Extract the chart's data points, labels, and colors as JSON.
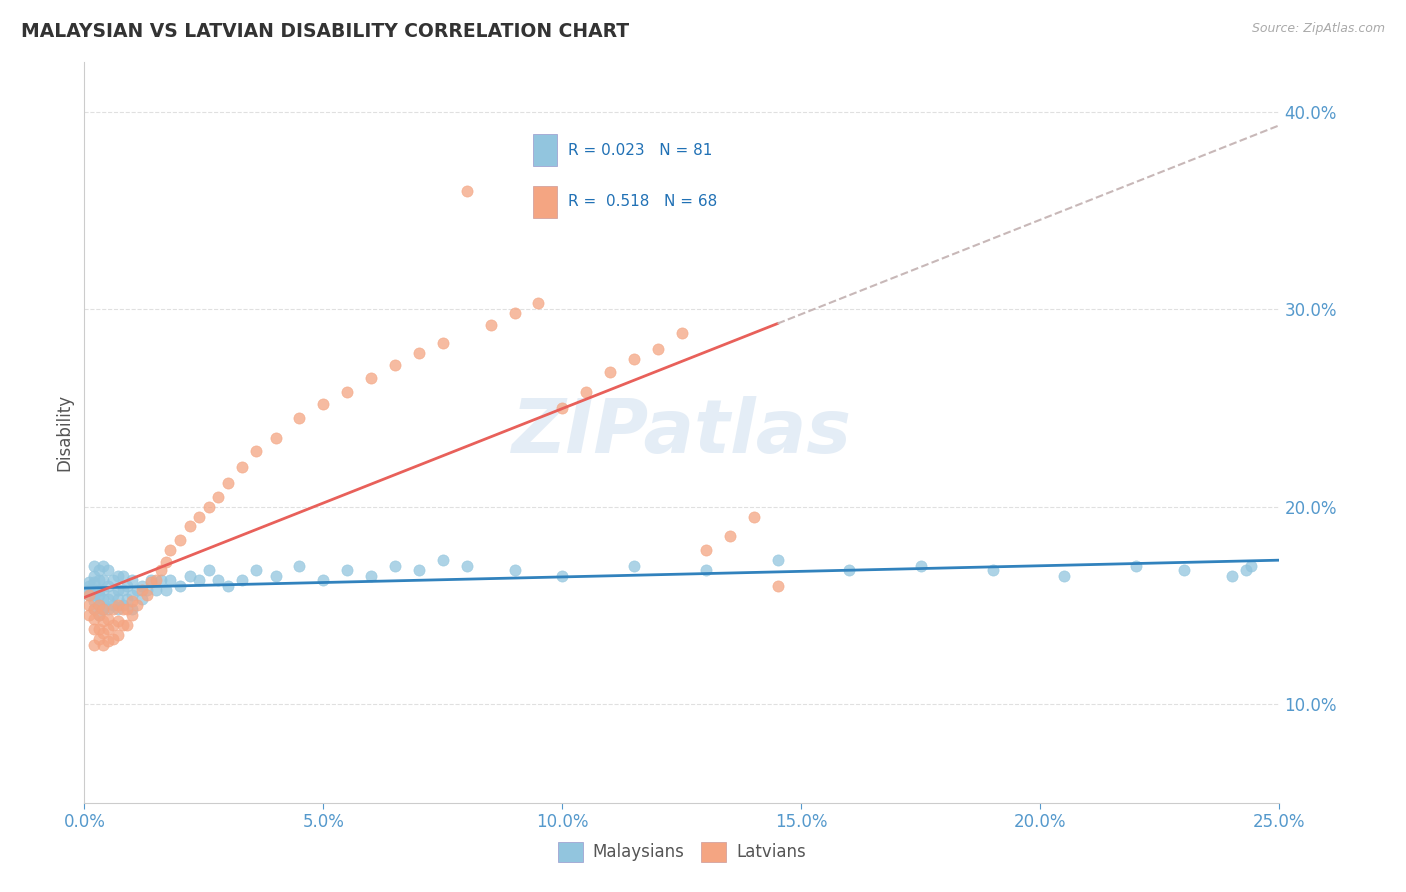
{
  "title": "MALAYSIAN VS LATVIAN DISABILITY CORRELATION CHART",
  "source": "Source: ZipAtlas.com",
  "ylabel": "Disability",
  "xlim": [
    0.0,
    0.25
  ],
  "ylim": [
    0.05,
    0.425
  ],
  "yticks": [
    0.1,
    0.2,
    0.3,
    0.4
  ],
  "xticks": [
    0.0,
    0.05,
    0.1,
    0.15,
    0.2,
    0.25
  ],
  "blue_color": "#92c5de",
  "pink_color": "#f4a582",
  "trendline_blue_color": "#3182bd",
  "trendline_pink_color": "#e8605a",
  "trendline_gray_color": "#c8b8b8",
  "watermark": "ZIPatlas",
  "r_malaysian": 0.023,
  "n_malaysian": 81,
  "r_latvian": 0.518,
  "n_latvian": 68,
  "legend_blue_text": "R = 0.023   N = 81",
  "legend_pink_text": "R =  0.518   N = 68",
  "legend_label_blue": "Malaysians",
  "legend_label_pink": "Latvians",
  "malaysian_x": [
    0.001,
    0.001,
    0.001,
    0.001,
    0.002,
    0.002,
    0.002,
    0.002,
    0.002,
    0.002,
    0.002,
    0.003,
    0.003,
    0.003,
    0.003,
    0.003,
    0.003,
    0.004,
    0.004,
    0.004,
    0.004,
    0.004,
    0.005,
    0.005,
    0.005,
    0.005,
    0.006,
    0.006,
    0.006,
    0.007,
    0.007,
    0.007,
    0.007,
    0.008,
    0.008,
    0.008,
    0.009,
    0.009,
    0.01,
    0.01,
    0.01,
    0.011,
    0.012,
    0.012,
    0.013,
    0.014,
    0.015,
    0.016,
    0.017,
    0.018,
    0.02,
    0.022,
    0.024,
    0.026,
    0.028,
    0.03,
    0.033,
    0.036,
    0.04,
    0.045,
    0.05,
    0.055,
    0.06,
    0.065,
    0.07,
    0.075,
    0.08,
    0.09,
    0.1,
    0.115,
    0.13,
    0.145,
    0.16,
    0.175,
    0.19,
    0.205,
    0.22,
    0.23,
    0.24,
    0.243,
    0.244
  ],
  "malaysian_y": [
    0.155,
    0.158,
    0.16,
    0.162,
    0.148,
    0.152,
    0.155,
    0.158,
    0.162,
    0.165,
    0.17,
    0.145,
    0.15,
    0.155,
    0.158,
    0.163,
    0.168,
    0.148,
    0.153,
    0.158,
    0.163,
    0.17,
    0.148,
    0.153,
    0.16,
    0.168,
    0.15,
    0.155,
    0.163,
    0.148,
    0.153,
    0.158,
    0.165,
    0.15,
    0.158,
    0.165,
    0.153,
    0.16,
    0.148,
    0.155,
    0.163,
    0.158,
    0.153,
    0.16,
    0.158,
    0.163,
    0.158,
    0.163,
    0.158,
    0.163,
    0.16,
    0.165,
    0.163,
    0.168,
    0.163,
    0.16,
    0.163,
    0.168,
    0.165,
    0.17,
    0.163,
    0.168,
    0.165,
    0.17,
    0.168,
    0.173,
    0.17,
    0.168,
    0.165,
    0.17,
    0.168,
    0.173,
    0.168,
    0.17,
    0.168,
    0.165,
    0.17,
    0.168,
    0.165,
    0.168,
    0.17
  ],
  "latvian_x": [
    0.001,
    0.001,
    0.001,
    0.002,
    0.002,
    0.002,
    0.002,
    0.003,
    0.003,
    0.003,
    0.003,
    0.004,
    0.004,
    0.004,
    0.004,
    0.005,
    0.005,
    0.005,
    0.006,
    0.006,
    0.006,
    0.007,
    0.007,
    0.007,
    0.008,
    0.008,
    0.009,
    0.009,
    0.01,
    0.01,
    0.011,
    0.012,
    0.013,
    0.014,
    0.015,
    0.016,
    0.017,
    0.018,
    0.02,
    0.022,
    0.024,
    0.026,
    0.028,
    0.03,
    0.033,
    0.036,
    0.04,
    0.045,
    0.05,
    0.055,
    0.06,
    0.065,
    0.07,
    0.075,
    0.08,
    0.085,
    0.09,
    0.095,
    0.1,
    0.105,
    0.11,
    0.115,
    0.12,
    0.125,
    0.13,
    0.135,
    0.14,
    0.145
  ],
  "latvian_y": [
    0.145,
    0.15,
    0.155,
    0.13,
    0.138,
    0.143,
    0.148,
    0.133,
    0.138,
    0.145,
    0.15,
    0.13,
    0.136,
    0.142,
    0.148,
    0.132,
    0.138,
    0.143,
    0.133,
    0.14,
    0.148,
    0.135,
    0.142,
    0.15,
    0.14,
    0.148,
    0.14,
    0.148,
    0.145,
    0.152,
    0.15,
    0.158,
    0.155,
    0.162,
    0.163,
    0.168,
    0.172,
    0.178,
    0.183,
    0.19,
    0.195,
    0.2,
    0.205,
    0.212,
    0.22,
    0.228,
    0.235,
    0.245,
    0.252,
    0.258,
    0.265,
    0.272,
    0.278,
    0.283,
    0.36,
    0.292,
    0.298,
    0.303,
    0.25,
    0.258,
    0.268,
    0.275,
    0.28,
    0.288,
    0.178,
    0.185,
    0.195,
    0.16
  ]
}
